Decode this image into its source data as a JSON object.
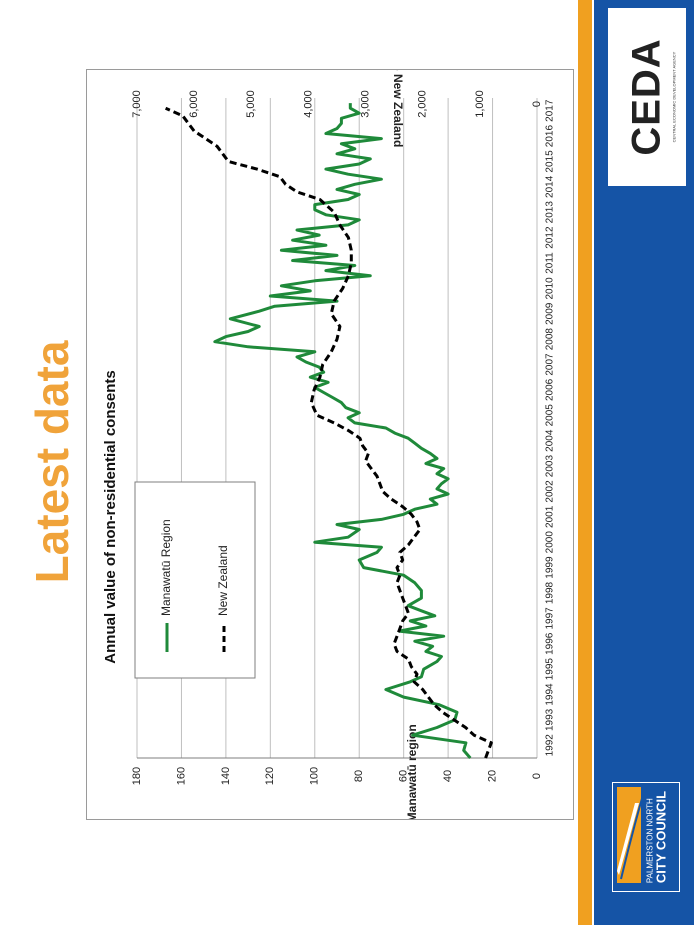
{
  "slide": {
    "title": "Latest data"
  },
  "logos": {
    "ceda": "CEDA",
    "ceda_sub": "CENTRAL ECONOMIC DEVELOPMENT AGENCY",
    "council_line1": "PALMERSTON NORTH",
    "council_line2": "CITY COUNCIL"
  },
  "colors": {
    "title": "#f0a33a",
    "brand_blue": "#1554a6",
    "stripe": "#f0a020",
    "manawatu": "#1f8a3a",
    "nz": "#000000",
    "grid": "#bfbfbf"
  },
  "chart_data": {
    "type": "line",
    "title": "Annual value of non-residential consents",
    "xlabel": "",
    "y1label": "$ million - Manawatū region",
    "y2label": "$ million - New Zealand",
    "y1lim": [
      0,
      180
    ],
    "y2lim": [
      0,
      7000
    ],
    "y1ticks": [
      "0",
      "20",
      "40",
      "60",
      "80",
      "100",
      "120",
      "140",
      "160",
      "180"
    ],
    "y2ticks": [
      "0",
      "1,000",
      "2,000",
      "3,000",
      "4,000",
      "5,000",
      "6,000",
      "7,000"
    ],
    "xlim": [
      1992,
      2018
    ],
    "xticks": [
      "1992",
      "1993",
      "1994",
      "1995",
      "1996",
      "1997",
      "1998",
      "1999",
      "2000",
      "2001",
      "2002",
      "2003",
      "2004",
      "2005",
      "2006",
      "2007",
      "2008",
      "2009",
      "2010",
      "2011",
      "2012",
      "2013",
      "2014",
      "2015",
      "2016",
      "2017"
    ],
    "legend_position": "upper-left",
    "grid": true,
    "series": [
      {
        "name": "Manawatū Region",
        "axis": "left",
        "style": "solid",
        "points": [
          [
            1992.0,
            30
          ],
          [
            1992.3,
            33
          ],
          [
            1992.6,
            32
          ],
          [
            1992.9,
            56
          ],
          [
            1993.2,
            45
          ],
          [
            1993.5,
            37
          ],
          [
            1993.8,
            36
          ],
          [
            1994.1,
            44
          ],
          [
            1994.4,
            60
          ],
          [
            1994.7,
            68
          ],
          [
            1995.0,
            57
          ],
          [
            1995.2,
            52
          ],
          [
            1995.5,
            51
          ],
          [
            1995.8,
            45
          ],
          [
            1996.0,
            43
          ],
          [
            1996.2,
            50
          ],
          [
            1996.4,
            47
          ],
          [
            1996.6,
            55
          ],
          [
            1996.8,
            42
          ],
          [
            1997.0,
            62
          ],
          [
            1997.2,
            50
          ],
          [
            1997.4,
            57
          ],
          [
            1997.6,
            46
          ],
          [
            1997.8,
            52
          ],
          [
            1998.0,
            58
          ],
          [
            1998.3,
            52
          ],
          [
            1998.6,
            52
          ],
          [
            1998.9,
            55
          ],
          [
            1999.2,
            60
          ],
          [
            1999.5,
            78
          ],
          [
            1999.8,
            80
          ],
          [
            2000.1,
            72
          ],
          [
            2000.3,
            70
          ],
          [
            2000.5,
            100
          ],
          [
            2000.7,
            85
          ],
          [
            2001.0,
            80
          ],
          [
            2001.2,
            90
          ],
          [
            2001.4,
            70
          ],
          [
            2001.6,
            60
          ],
          [
            2001.8,
            55
          ],
          [
            2002.0,
            45
          ],
          [
            2002.2,
            48
          ],
          [
            2002.4,
            40
          ],
          [
            2002.6,
            45
          ],
          [
            2002.8,
            43
          ],
          [
            2003.0,
            40
          ],
          [
            2003.2,
            45
          ],
          [
            2003.4,
            42
          ],
          [
            2003.6,
            50
          ],
          [
            2003.8,
            45
          ],
          [
            2004.0,
            48
          ],
          [
            2004.2,
            52
          ],
          [
            2004.4,
            55
          ],
          [
            2004.6,
            58
          ],
          [
            2004.8,
            64
          ],
          [
            2005.0,
            68
          ],
          [
            2005.2,
            82
          ],
          [
            2005.4,
            85
          ],
          [
            2005.6,
            80
          ],
          [
            2005.8,
            86
          ],
          [
            2006.0,
            88
          ],
          [
            2006.2,
            92
          ],
          [
            2006.4,
            96
          ],
          [
            2006.6,
            100
          ],
          [
            2006.8,
            94
          ],
          [
            2007.0,
            102
          ],
          [
            2007.2,
            96
          ],
          [
            2007.4,
            98
          ],
          [
            2007.6,
            104
          ],
          [
            2007.8,
            108
          ],
          [
            2008.0,
            100
          ],
          [
            2008.2,
            130
          ],
          [
            2008.4,
            145
          ],
          [
            2008.6,
            140
          ],
          [
            2008.8,
            130
          ],
          [
            2009.0,
            125
          ],
          [
            2009.3,
            138
          ],
          [
            2009.6,
            125
          ],
          [
            2009.8,
            118
          ],
          [
            2010.0,
            90
          ],
          [
            2010.2,
            120
          ],
          [
            2010.4,
            102
          ],
          [
            2010.6,
            115
          ],
          [
            2010.8,
            100
          ],
          [
            2011.0,
            75
          ],
          [
            2011.2,
            95
          ],
          [
            2011.4,
            82
          ],
          [
            2011.6,
            110
          ],
          [
            2011.8,
            90
          ],
          [
            2012.0,
            115
          ],
          [
            2012.2,
            95
          ],
          [
            2012.4,
            110
          ],
          [
            2012.6,
            98
          ],
          [
            2012.8,
            108
          ],
          [
            2013.0,
            85
          ],
          [
            2013.2,
            80
          ],
          [
            2013.4,
            95
          ],
          [
            2013.6,
            100
          ],
          [
            2013.8,
            100
          ],
          [
            2014.0,
            85
          ],
          [
            2014.2,
            80
          ],
          [
            2014.4,
            90
          ],
          [
            2014.6,
            82
          ],
          [
            2014.8,
            70
          ],
          [
            2015.0,
            85
          ],
          [
            2015.2,
            95
          ],
          [
            2015.4,
            80
          ],
          [
            2015.6,
            75
          ],
          [
            2015.8,
            90
          ],
          [
            2016.0,
            82
          ],
          [
            2016.2,
            88
          ],
          [
            2016.4,
            70
          ],
          [
            2016.6,
            95
          ],
          [
            2016.8,
            90
          ],
          [
            2017.0,
            88
          ],
          [
            2017.2,
            88
          ],
          [
            2017.4,
            80
          ],
          [
            2017.6,
            84
          ],
          [
            2017.8,
            84
          ]
        ]
      },
      {
        "name": "New Zealand",
        "axis": "right",
        "style": "dashed",
        "points": [
          [
            1992.0,
            900
          ],
          [
            1992.3,
            850
          ],
          [
            1992.6,
            800
          ],
          [
            1992.9,
            1100
          ],
          [
            1993.2,
            1250
          ],
          [
            1993.5,
            1450
          ],
          [
            1993.8,
            1650
          ],
          [
            1994.1,
            1800
          ],
          [
            1994.4,
            1900
          ],
          [
            1994.7,
            2000
          ],
          [
            1995.0,
            2150
          ],
          [
            1995.3,
            2100
          ],
          [
            1995.6,
            2200
          ],
          [
            1995.9,
            2250
          ],
          [
            1996.2,
            2450
          ],
          [
            1996.5,
            2500
          ],
          [
            1996.8,
            2450
          ],
          [
            1997.1,
            2400
          ],
          [
            1997.4,
            2350
          ],
          [
            1997.7,
            2250
          ],
          [
            1998.0,
            2300
          ],
          [
            1998.3,
            2350
          ],
          [
            1998.6,
            2400
          ],
          [
            1998.9,
            2450
          ],
          [
            1999.2,
            2400
          ],
          [
            1999.5,
            2450
          ],
          [
            1999.8,
            2350
          ],
          [
            2000.1,
            2400
          ],
          [
            2000.4,
            2250
          ],
          [
            2000.7,
            2150
          ],
          [
            2001.0,
            2050
          ],
          [
            2001.3,
            2100
          ],
          [
            2001.6,
            2200
          ],
          [
            2001.9,
            2350
          ],
          [
            2002.2,
            2550
          ],
          [
            2002.5,
            2700
          ],
          [
            2002.8,
            2750
          ],
          [
            2003.1,
            2800
          ],
          [
            2003.4,
            2900
          ],
          [
            2003.7,
            3000
          ],
          [
            2004.0,
            2950
          ],
          [
            2004.3,
            3050
          ],
          [
            2004.6,
            3100
          ],
          [
            2004.9,
            3300
          ],
          [
            2005.2,
            3550
          ],
          [
            2005.5,
            3850
          ],
          [
            2006.0,
            3950
          ],
          [
            2006.5,
            3900
          ],
          [
            2007.0,
            3800
          ],
          [
            2007.5,
            3750
          ],
          [
            2008.0,
            3600
          ],
          [
            2008.5,
            3500
          ],
          [
            2009.0,
            3450
          ],
          [
            2009.5,
            3600
          ],
          [
            2010.0,
            3550
          ],
          [
            2010.5,
            3400
          ],
          [
            2011.0,
            3300
          ],
          [
            2011.5,
            3250
          ],
          [
            2012.0,
            3250
          ],
          [
            2012.5,
            3300
          ],
          [
            2013.0,
            3450
          ],
          [
            2013.5,
            3550
          ],
          [
            2014.0,
            3800
          ],
          [
            2014.3,
            4200
          ],
          [
            2014.6,
            4400
          ],
          [
            2014.9,
            4500
          ],
          [
            2015.2,
            4900
          ],
          [
            2015.5,
            5400
          ],
          [
            2015.8,
            5500
          ],
          [
            2016.1,
            5600
          ],
          [
            2016.4,
            5800
          ],
          [
            2016.7,
            6000
          ],
          [
            2017.0,
            6100
          ],
          [
            2017.3,
            6200
          ],
          [
            2017.6,
            6500
          ]
        ]
      }
    ]
  }
}
